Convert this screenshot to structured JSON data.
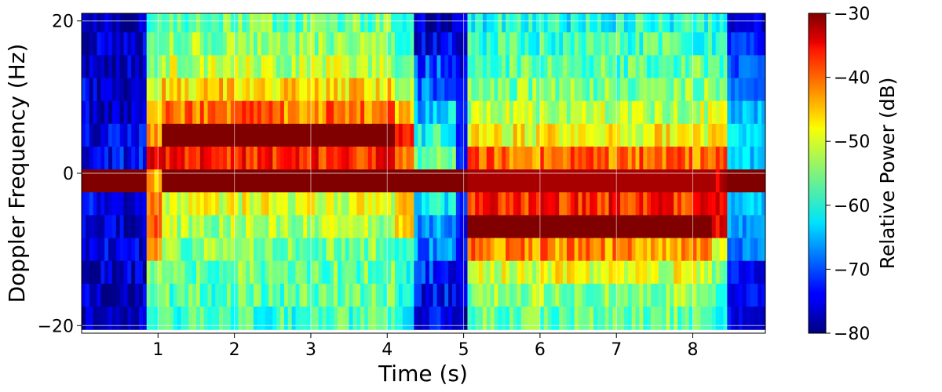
{
  "chart_data": {
    "type": "heatmap",
    "title": "",
    "xlabel": "Time (s)",
    "ylabel": "Doppler Frequency (Hz)",
    "xlim": [
      0,
      8.95
    ],
    "ylim": [
      -21,
      21
    ],
    "xticks": [
      1,
      2,
      3,
      4,
      5,
      6,
      7,
      8
    ],
    "xtick_labels": [
      "1",
      "2",
      "3",
      "4",
      "5",
      "6",
      "7",
      "8"
    ],
    "yticks": [
      20,
      0,
      -20
    ],
    "ytick_labels": [
      "20",
      "0",
      "−20"
    ],
    "grid": true,
    "colormap": "jet",
    "colorbar": {
      "label": "Relative Power (dB)",
      "range": [
        -80,
        -30
      ],
      "ticks": [
        -30,
        -40,
        -50,
        -60,
        -70,
        -80
      ],
      "tick_labels": [
        "−30",
        "−40",
        "−50",
        "−60",
        "−70",
        "−80"
      ]
    },
    "frequency_bins_hz": [
      20,
      17,
      14,
      11,
      8,
      5,
      2,
      -1,
      -4,
      -7,
      -10,
      -13,
      -16,
      -19
    ],
    "segments": [
      {
        "time": [
          0.0,
          0.85
        ],
        "power_db": [
          -78,
          -77,
          -77,
          -76,
          -76,
          -75,
          -74,
          -30,
          -75,
          -76,
          -76,
          -77,
          -77,
          -78
        ]
      },
      {
        "time": [
          0.85,
          1.05
        ],
        "power_db": [
          -58,
          -57,
          -55,
          -52,
          -47,
          -44,
          -35,
          -45,
          -42,
          -40,
          -42,
          -55,
          -57,
          -58
        ]
      },
      {
        "time": [
          1.05,
          4.1
        ],
        "power_db": [
          -56,
          -54,
          -52,
          -47,
          -42,
          -30,
          -38,
          -30,
          -50,
          -53,
          -55,
          -56,
          -57,
          -58
        ]
      },
      {
        "time": [
          4.1,
          4.35
        ],
        "power_db": [
          -60,
          -58,
          -56,
          -53,
          -46,
          -36,
          -42,
          -30,
          -44,
          -46,
          -58,
          -60,
          -61,
          -62
        ]
      },
      {
        "time": [
          4.35,
          4.9
        ],
        "power_db": [
          -77,
          -74,
          -70,
          -68,
          -64,
          -60,
          -57,
          -30,
          -62,
          -65,
          -67,
          -72,
          -74,
          -75
        ]
      },
      {
        "time": [
          4.9,
          5.05
        ],
        "power_db": [
          -76,
          -75,
          -75,
          -74,
          -74,
          -73,
          -72,
          -30,
          -73,
          -74,
          -75,
          -76,
          -76,
          -77
        ]
      },
      {
        "time": [
          5.05,
          8.25
        ],
        "power_db": [
          -60,
          -58,
          -57,
          -55,
          -52,
          -49,
          -42,
          -32,
          -38,
          -30,
          -43,
          -50,
          -54,
          -56
        ]
      },
      {
        "time": [
          8.25,
          8.45
        ],
        "power_db": [
          -62,
          -60,
          -58,
          -55,
          -50,
          -45,
          -40,
          -34,
          -36,
          -36,
          -50,
          -55,
          -58,
          -60
        ]
      },
      {
        "time": [
          8.45,
          8.95
        ],
        "power_db": [
          -76,
          -72,
          -70,
          -68,
          -65,
          -63,
          -64,
          -30,
          -64,
          -66,
          -68,
          -74,
          -74,
          -75
        ]
      }
    ]
  }
}
